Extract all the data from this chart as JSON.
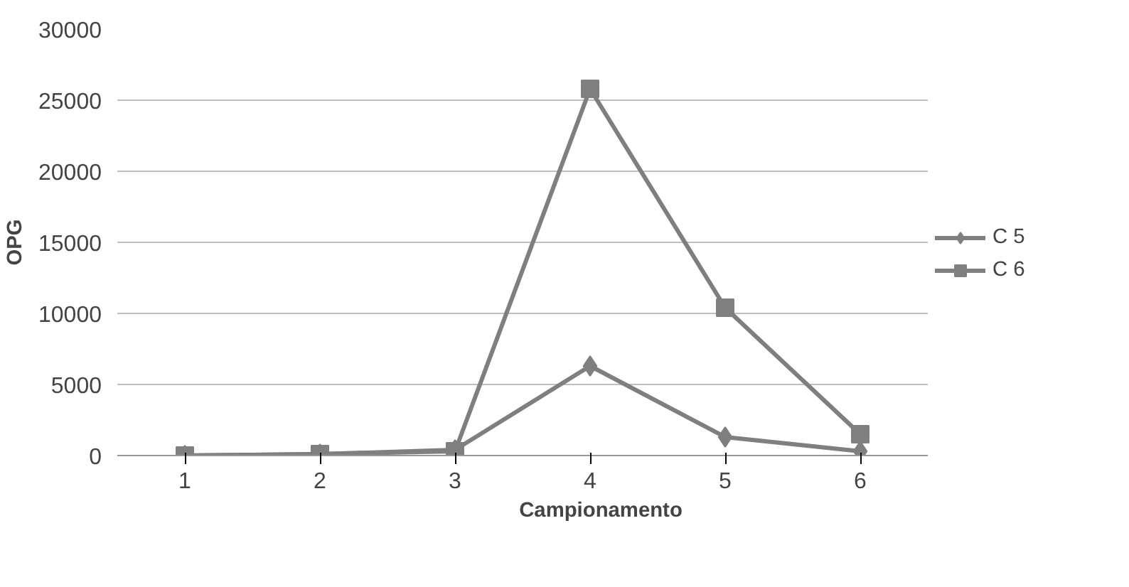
{
  "chart_data": {
    "type": "line",
    "xlabel": "Campionamento",
    "ylabel": "OPG",
    "categories": [
      "1",
      "2",
      "3",
      "4",
      "5",
      "6"
    ],
    "series": [
      {
        "name": "C 5",
        "color": "#7f7f7f",
        "marker": "diamond",
        "values": [
          0,
          100,
          400,
          6300,
          1300,
          300
        ]
      },
      {
        "name": "C 6",
        "color": "#7f7f7f",
        "marker": "square",
        "values": [
          0,
          100,
          300,
          25800,
          10400,
          1500
        ]
      }
    ],
    "ylim": [
      0,
      30000
    ],
    "yticks": [
      0,
      5000,
      10000,
      15000,
      20000,
      25000,
      30000
    ],
    "grid": "y",
    "legend": "right",
    "line_style": "solid"
  }
}
